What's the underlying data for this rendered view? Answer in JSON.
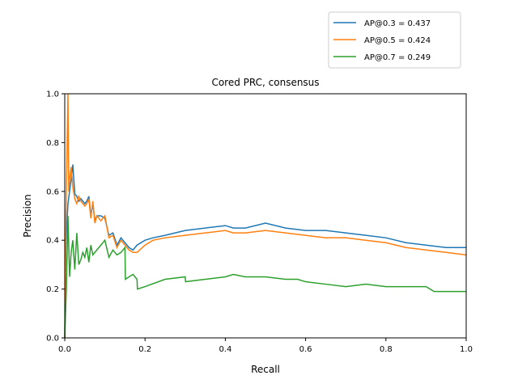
{
  "chart_data": {
    "type": "line",
    "title": "Cored PRC, consensus",
    "xlabel": "Recall",
    "ylabel": "Precision",
    "xlim": [
      0,
      1
    ],
    "ylim": [
      0,
      1
    ],
    "x_ticks": [
      0.0,
      0.2,
      0.4,
      0.6,
      0.8,
      1.0
    ],
    "y_ticks": [
      0.0,
      0.2,
      0.4,
      0.6,
      0.8,
      1.0
    ],
    "x_tick_labels": [
      "0.0",
      "0.2",
      "0.4",
      "0.6",
      "0.8",
      "1.0"
    ],
    "y_tick_labels": [
      "0.0",
      "0.2",
      "0.4",
      "0.6",
      "0.8",
      "1.0"
    ],
    "legend_position": "top-right, above plot",
    "series": [
      {
        "name": "AP@0.3 = 0.437",
        "color": "#1f77b4",
        "x": [
          0.0,
          0.003,
          0.008,
          0.012,
          0.016,
          0.02,
          0.025,
          0.03,
          0.035,
          0.04,
          0.05,
          0.055,
          0.06,
          0.065,
          0.07,
          0.075,
          0.08,
          0.09,
          0.1,
          0.11,
          0.12,
          0.13,
          0.14,
          0.15,
          0.16,
          0.17,
          0.18,
          0.2,
          0.22,
          0.25,
          0.3,
          0.35,
          0.4,
          0.42,
          0.45,
          0.5,
          0.55,
          0.6,
          0.65,
          0.7,
          0.75,
          0.8,
          0.85,
          0.9,
          0.95,
          1.0
        ],
        "y": [
          0.0,
          0.4,
          0.55,
          0.6,
          0.65,
          0.71,
          0.59,
          0.58,
          0.56,
          0.57,
          0.55,
          0.56,
          0.58,
          0.5,
          0.55,
          0.48,
          0.5,
          0.5,
          0.49,
          0.42,
          0.43,
          0.38,
          0.41,
          0.39,
          0.37,
          0.36,
          0.38,
          0.4,
          0.41,
          0.42,
          0.44,
          0.45,
          0.46,
          0.45,
          0.45,
          0.47,
          0.45,
          0.44,
          0.44,
          0.43,
          0.42,
          0.41,
          0.39,
          0.38,
          0.37,
          0.37
        ]
      },
      {
        "name": "AP@0.5 = 0.424",
        "color": "#ff7f0e",
        "x": [
          0.0,
          0.003,
          0.008,
          0.01,
          0.012,
          0.016,
          0.02,
          0.025,
          0.03,
          0.035,
          0.04,
          0.05,
          0.055,
          0.06,
          0.065,
          0.07,
          0.075,
          0.08,
          0.09,
          0.1,
          0.11,
          0.12,
          0.13,
          0.14,
          0.15,
          0.16,
          0.17,
          0.18,
          0.2,
          0.22,
          0.25,
          0.3,
          0.35,
          0.4,
          0.42,
          0.45,
          0.5,
          0.55,
          0.6,
          0.65,
          0.7,
          0.75,
          0.8,
          0.85,
          0.9,
          0.95,
          1.0
        ],
        "y": [
          0.0,
          0.5,
          1.0,
          0.6,
          0.65,
          0.7,
          0.62,
          0.57,
          0.55,
          0.58,
          0.56,
          0.54,
          0.55,
          0.57,
          0.49,
          0.56,
          0.47,
          0.5,
          0.48,
          0.5,
          0.41,
          0.42,
          0.37,
          0.4,
          0.38,
          0.36,
          0.35,
          0.35,
          0.38,
          0.4,
          0.41,
          0.42,
          0.43,
          0.44,
          0.43,
          0.43,
          0.44,
          0.43,
          0.42,
          0.41,
          0.41,
          0.4,
          0.39,
          0.37,
          0.36,
          0.35,
          0.34
        ]
      },
      {
        "name": "AP@0.7 = 0.249",
        "color": "#2ca02c",
        "x": [
          0.0,
          0.004,
          0.008,
          0.012,
          0.016,
          0.02,
          0.025,
          0.03,
          0.035,
          0.04,
          0.045,
          0.05,
          0.055,
          0.06,
          0.065,
          0.07,
          0.08,
          0.09,
          0.1,
          0.11,
          0.12,
          0.13,
          0.14,
          0.15,
          0.151,
          0.16,
          0.17,
          0.18,
          0.181,
          0.2,
          0.25,
          0.3,
          0.301,
          0.35,
          0.4,
          0.42,
          0.45,
          0.5,
          0.55,
          0.58,
          0.6,
          0.65,
          0.7,
          0.75,
          0.8,
          0.85,
          0.9,
          0.92,
          0.95,
          1.0
        ],
        "y": [
          0.0,
          0.2,
          0.5,
          0.25,
          0.35,
          0.4,
          0.28,
          0.43,
          0.3,
          0.32,
          0.35,
          0.33,
          0.37,
          0.31,
          0.38,
          0.34,
          0.36,
          0.38,
          0.4,
          0.33,
          0.36,
          0.34,
          0.35,
          0.37,
          0.24,
          0.25,
          0.26,
          0.24,
          0.2,
          0.21,
          0.24,
          0.25,
          0.23,
          0.24,
          0.25,
          0.26,
          0.25,
          0.25,
          0.24,
          0.24,
          0.23,
          0.22,
          0.21,
          0.22,
          0.21,
          0.21,
          0.21,
          0.19,
          0.19,
          0.19
        ]
      }
    ]
  }
}
